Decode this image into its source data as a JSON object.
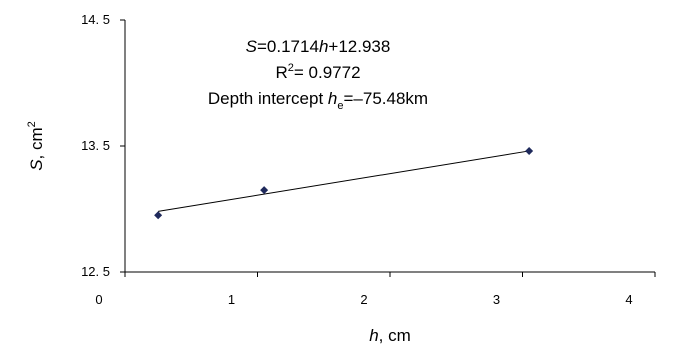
{
  "chart_data": {
    "type": "scatter",
    "xlim": [
      0,
      4
    ],
    "ylim": [
      12.5,
      14.5
    ],
    "xticks": [
      {
        "value": 0,
        "label": "0"
      },
      {
        "value": 1,
        "label": "1"
      },
      {
        "value": 2,
        "label": "2"
      },
      {
        "value": 3,
        "label": "3"
      },
      {
        "value": 4,
        "label": "4"
      }
    ],
    "yticks": [
      {
        "value": 12.5,
        "label": "12. 5"
      },
      {
        "value": 13.5,
        "label": "13. 5"
      },
      {
        "value": 14.5,
        "label": "14. 5"
      }
    ],
    "xlabel": {
      "italic": "h",
      "rest": ", cm"
    },
    "ylabel": {
      "italic": "S",
      "rest": ", cm",
      "sup": "2"
    },
    "points": [
      {
        "x": 0.25,
        "y": 12.95
      },
      {
        "x": 1.05,
        "y": 13.15
      },
      {
        "x": 3.05,
        "y": 13.46
      }
    ],
    "trendline": {
      "slope": 0.1714,
      "intercept": 12.938,
      "x_range": [
        0.25,
        3.05
      ]
    },
    "marker_color": "#1f2a5c",
    "line_color": "#000000",
    "grid": false,
    "annotations": {
      "equation": {
        "italic_s": "S",
        "eq1": "=0.1714",
        "italic_h": "h",
        "eq2": "+12.938"
      },
      "r_squared": {
        "r": "R",
        "sup": "2",
        "rest": "= 0.9772"
      },
      "depth": {
        "prefix": "Depth intercept ",
        "italic_h": "h",
        "sub": "e",
        "rest": "=–75.48km"
      }
    }
  }
}
